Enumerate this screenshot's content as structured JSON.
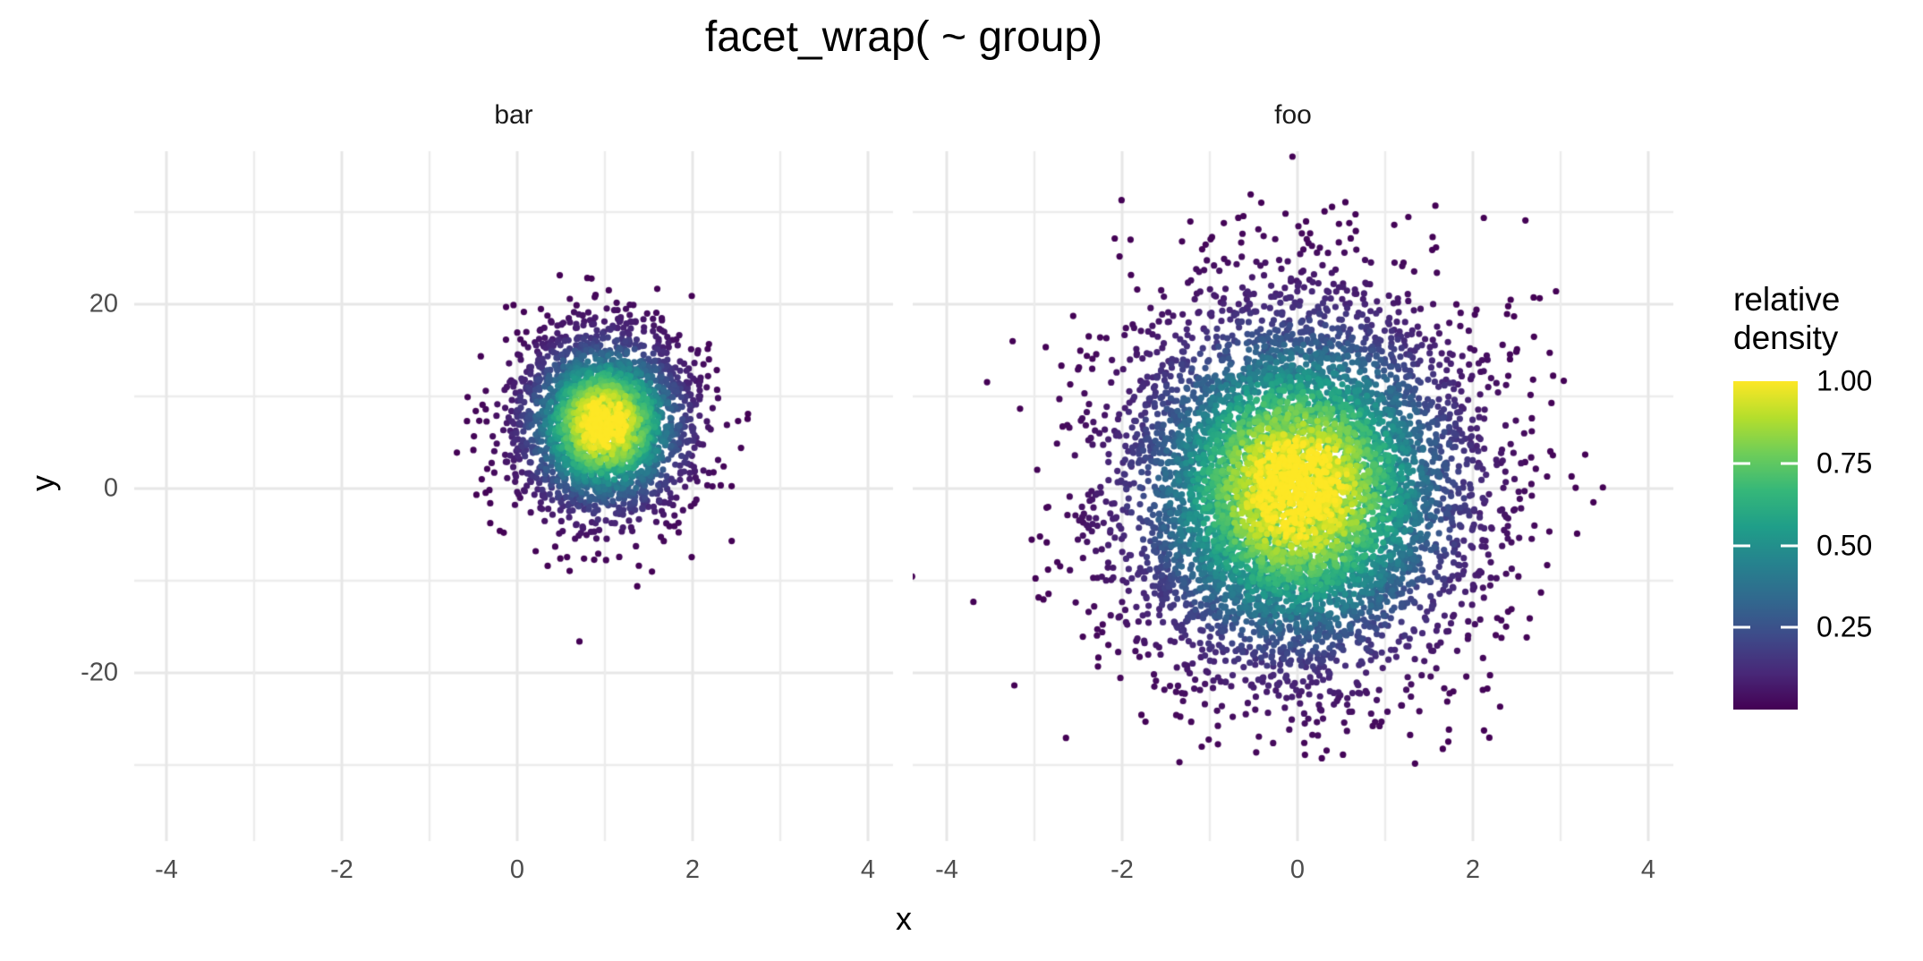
{
  "chart_data": {
    "type": "scatter",
    "title": "facet_wrap( ~ group)",
    "xlabel": "x",
    "ylabel": "y",
    "grid": true,
    "legend_position": "right",
    "colormap": "viridis",
    "color_variable": "relative density",
    "x_ticks": [
      -4,
      -2,
      0,
      2,
      4
    ],
    "y_ticks": [
      20,
      0,
      -20
    ],
    "xlim": [
      -4.4,
      4.3
    ],
    "ylim": [
      -38.3,
      36.6
    ],
    "point_radius_px": 3.6,
    "facets": [
      {
        "label": "bar",
        "n": 3000,
        "mean_x": 1,
        "sd_x": 0.5,
        "mean_y": 7,
        "sd_y": 5
      },
      {
        "label": "foo",
        "n": 7000,
        "mean_x": 0,
        "sd_x": 1,
        "mean_y": 0,
        "sd_y": 10
      }
    ],
    "color_rule": "relative density of points, 0 at sparse edges to 1.00 at the densest core of each facet, mapped through viridis"
  },
  "legend": {
    "title": "relative density",
    "tick_labels": [
      "1.00",
      "0.75",
      "0.50",
      "0.25"
    ],
    "tick_values": [
      1.0,
      0.75,
      0.5,
      0.25
    ]
  },
  "colors": {
    "viridis_stops": [
      "#440154",
      "#482878",
      "#3E4A89",
      "#31688E",
      "#26828E",
      "#1F9E89",
      "#35B779",
      "#6DCD59",
      "#B4DE2C",
      "#FDE725"
    ],
    "grid_major": "#E7E7E7",
    "grid_minor": "#ECECEC",
    "tick_label": "#4D4D4D",
    "text": "#1A1A1A",
    "background": "#FFFFFF",
    "legend_tick": "#FFFFFF"
  }
}
